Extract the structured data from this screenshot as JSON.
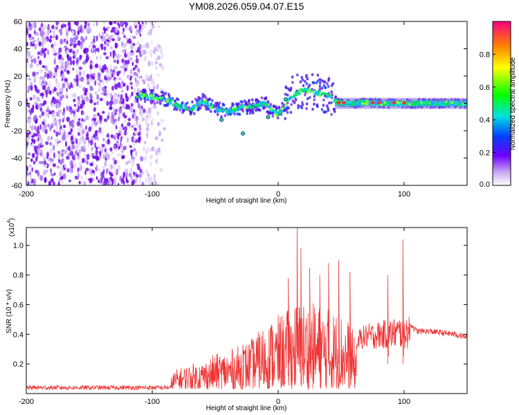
{
  "title": "YM08.2026.059.04.07.E15",
  "chart_data": [
    {
      "type": "heatmap",
      "name": "spectrogram",
      "xlabel": "Height of straight line (km)",
      "ylabel": "Frequency (Hz)",
      "xlim": [
        -200,
        150
      ],
      "ylim": [
        -60,
        60
      ],
      "xticks": [
        "-200",
        "-100",
        "0",
        "100"
      ],
      "yticks": [
        "60",
        "40",
        "20",
        "0",
        "-20",
        "-40",
        "-60"
      ],
      "colorbar": {
        "label": "Normalized spectral amplitude",
        "range": [
          0,
          1
        ],
        "ticks": [
          "0.8",
          "0.6",
          "0.4",
          "0.2",
          "0.0"
        ]
      },
      "ridge": {
        "x": [
          -110,
          -100,
          -90,
          -80,
          -70,
          -60,
          -50,
          -40,
          -30,
          -20,
          -10,
          -5,
          0,
          10,
          20,
          30,
          40,
          50,
          60,
          70,
          80,
          90,
          100,
          110,
          120,
          130,
          140,
          150
        ],
        "y": [
          6,
          5,
          3,
          -1,
          -5,
          2,
          -4,
          -6,
          -3,
          -2,
          0,
          -5,
          -8,
          5,
          10,
          8,
          5,
          0,
          0,
          1,
          0,
          0,
          0,
          0,
          0,
          0,
          0,
          0
        ]
      },
      "noise_region": [
        -200,
        -90
      ]
    },
    {
      "type": "line",
      "name": "snr",
      "xlabel": "Height of straight line (km)",
      "ylabel": "SNR (10 * v/v)",
      "yscale_label": "(x10",
      "yscale_exp": "4",
      "xlim": [
        -200,
        150
      ],
      "ylim": [
        0,
        1.12
      ],
      "xticks": [
        "-200",
        "-100",
        "0",
        "100"
      ],
      "yticks": [
        "1.0",
        "0.8",
        "0.6",
        "0.4",
        "0.2"
      ],
      "color": "#ee3333",
      "envelope": {
        "x": [
          -200,
          -120,
          -100,
          -90,
          -80,
          -70,
          -60,
          -50,
          -40,
          -30,
          -20,
          -10,
          0,
          10,
          15,
          20,
          30,
          40,
          50,
          58,
          62,
          65,
          70,
          80,
          90,
          100,
          105,
          110,
          120,
          130,
          140,
          150
        ],
        "y": [
          0.04,
          0.04,
          0.05,
          0.07,
          0.14,
          0.17,
          0.19,
          0.24,
          0.26,
          0.3,
          0.35,
          0.45,
          0.5,
          0.55,
          0.62,
          0.6,
          0.58,
          0.55,
          0.52,
          0.45,
          0.28,
          0.4,
          0.42,
          0.44,
          0.46,
          0.48,
          0.47,
          0.42,
          0.42,
          0.41,
          0.4,
          0.38
        ]
      },
      "peaks": [
        {
          "x": 15,
          "y": 1.12
        },
        {
          "x": 18,
          "y": 0.98
        },
        {
          "x": 40,
          "y": 0.88
        },
        {
          "x": 48,
          "y": 0.9
        },
        {
          "x": 57,
          "y": 0.82
        },
        {
          "x": 87,
          "y": 0.8
        },
        {
          "x": 99,
          "y": 1.04
        },
        {
          "x": 25,
          "y": 0.85
        },
        {
          "x": 8,
          "y": 0.78
        },
        {
          "x": 33,
          "y": 0.8
        },
        {
          "x": -28,
          "y": 0.33
        },
        {
          "x": -15,
          "y": 0.38
        },
        {
          "x": -5,
          "y": 0.46
        }
      ]
    }
  ]
}
